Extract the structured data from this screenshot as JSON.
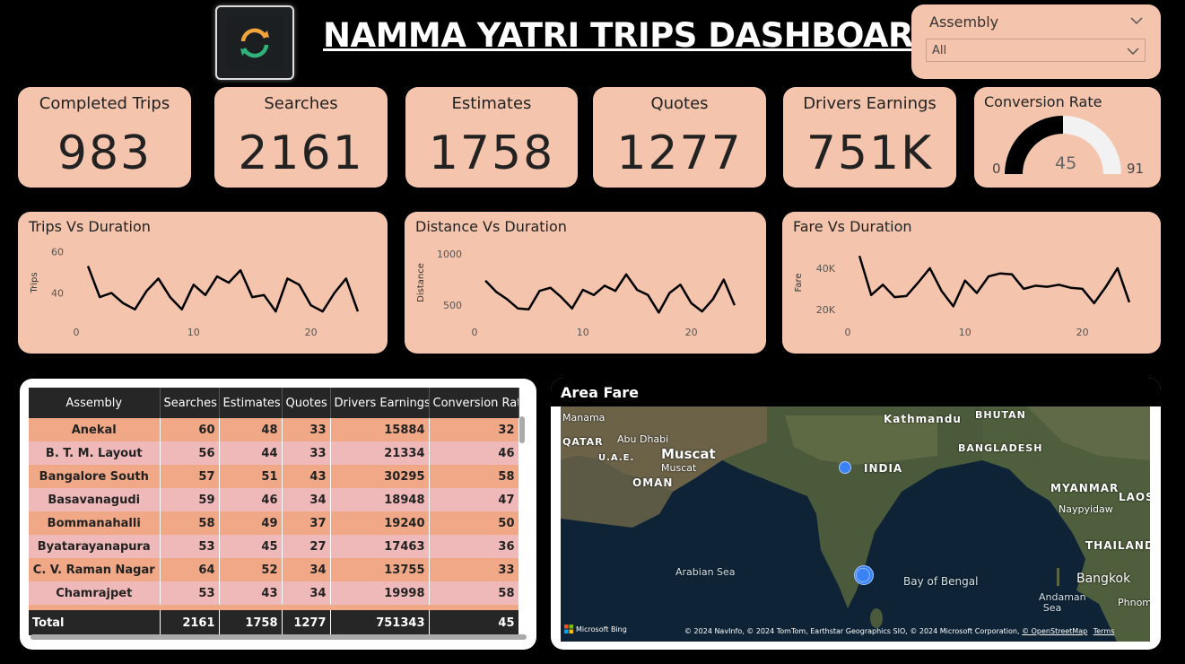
{
  "header": {
    "title": "NAMMA YATRI TRIPS DASHBOARD"
  },
  "slicer": {
    "label": "Assembly",
    "selected": "All"
  },
  "kpis": {
    "completed": {
      "label": "Completed Trips",
      "value": "983"
    },
    "searches": {
      "label": "Searches",
      "value": "2161"
    },
    "estimates": {
      "label": "Estimates",
      "value": "1758"
    },
    "quotes": {
      "label": "Quotes",
      "value": "1277"
    },
    "earnings": {
      "label": "Drivers Earnings",
      "value": "751K"
    }
  },
  "gauge": {
    "title": "Conversion Rate",
    "min": "0",
    "max": "91",
    "value_label": "45",
    "value": 45.5
  },
  "colors": {
    "card": "#f4c4ad",
    "line": "#000000",
    "gauge_fill": "#000000",
    "gauge_track": "#f2f2f2",
    "row_a": "#f0a887",
    "row_b": "#f0b9b9",
    "map_dot": "#3b82f6"
  },
  "chart_data": [
    {
      "type": "line",
      "title": "Trips Vs Duration",
      "ylabel": "Trips",
      "xlabel": "",
      "x": [
        1,
        2,
        3,
        4,
        5,
        6,
        7,
        8,
        9,
        10,
        11,
        12,
        13,
        14,
        15,
        16,
        17,
        18,
        19,
        20,
        21,
        22,
        23,
        24
      ],
      "y": [
        53,
        38,
        40,
        35,
        32,
        41,
        47,
        38,
        32,
        44,
        39,
        48,
        45,
        51,
        38,
        39,
        31,
        47,
        44,
        34,
        31,
        40,
        47,
        31
      ],
      "ylim": [
        28,
        62
      ],
      "xlim": [
        0,
        25
      ],
      "yticks": [
        "40",
        "60"
      ],
      "xticks": [
        "0",
        "10",
        "20"
      ]
    },
    {
      "type": "line",
      "title": "Distance Vs Duration",
      "ylabel": "Distance",
      "xlabel": "",
      "x": [
        1,
        2,
        3,
        4,
        5,
        6,
        7,
        8,
        9,
        10,
        11,
        12,
        13,
        14,
        15,
        16,
        17,
        18,
        19,
        20,
        21,
        22,
        23,
        24
      ],
      "y": [
        740,
        630,
        560,
        470,
        460,
        640,
        670,
        580,
        470,
        650,
        600,
        690,
        640,
        800,
        650,
        600,
        430,
        620,
        700,
        520,
        440,
        560,
        750,
        500
      ],
      "ylim": [
        380,
        1060
      ],
      "xlim": [
        0,
        25
      ],
      "yticks": [
        "500",
        "1000"
      ],
      "xticks": [
        "0",
        "10",
        "20"
      ]
    },
    {
      "type": "line",
      "title": "Fare Vs Duration",
      "ylabel": "Fare",
      "xlabel": "",
      "x": [
        1,
        2,
        3,
        4,
        5,
        6,
        7,
        8,
        9,
        10,
        11,
        12,
        13,
        14,
        15,
        16,
        17,
        18,
        19,
        20,
        21,
        22,
        23,
        24
      ],
      "y": [
        46000,
        27000,
        32000,
        26000,
        26500,
        33000,
        40000,
        29000,
        21500,
        34000,
        28000,
        36000,
        37500,
        37000,
        30000,
        31500,
        31000,
        32000,
        30500,
        30000,
        23000,
        31000,
        40000,
        23500
      ],
      "ylim": [
        16000,
        50000
      ],
      "xlim": [
        0,
        25
      ],
      "yticks": [
        "20K",
        "40K"
      ],
      "xticks": [
        "0",
        "10",
        "20"
      ]
    }
  ],
  "table": {
    "columns": [
      "Assembly",
      "Searches",
      "Estimates",
      "Quotes",
      "Drivers Earnings",
      "Conversion Rate"
    ],
    "rows": [
      [
        "Anekal",
        "60",
        "48",
        "33",
        "15884",
        "32"
      ],
      [
        "B. T. M. Layout",
        "56",
        "44",
        "33",
        "21334",
        "46"
      ],
      [
        "Bangalore South",
        "57",
        "51",
        "43",
        "30295",
        "58"
      ],
      [
        "Basavanagudi",
        "59",
        "46",
        "34",
        "18948",
        "47"
      ],
      [
        "Bommanahalli",
        "58",
        "49",
        "37",
        "19240",
        "50"
      ],
      [
        "Byatarayanapura",
        "53",
        "45",
        "27",
        "17463",
        "36"
      ],
      [
        "C. V. Raman Nagar",
        "64",
        "52",
        "34",
        "13755",
        "33"
      ],
      [
        "Chamrajpet",
        "53",
        "43",
        "34",
        "19998",
        "58"
      ]
    ],
    "total": [
      "Total",
      "2161",
      "1758",
      "1277",
      "751343",
      "45"
    ]
  },
  "map": {
    "title": "Area Fare",
    "labels": {
      "manama": "Manama",
      "kathmandu": "Kathmandu",
      "bhutan": "BHUTAN",
      "qatar": "QATAR",
      "abudhabi": "Abu Dhabi",
      "muscat_big": "Muscat",
      "muscat": "Muscat",
      "uae": "U.A.E.",
      "bangladesh": "BANGLADESH",
      "india": "INDIA",
      "oman": "OMAN",
      "myanmar": "MYANMAR",
      "naypyidaw": "Naypyidaw",
      "laos": "LAOS",
      "thailand": "THAILAND",
      "arabian": "Arabian Sea",
      "bengal": "Bay of Bengal",
      "bangkok": "Bangkok",
      "andaman": "Andaman Sea",
      "phnom": "Phnom"
    },
    "bing": "Microsoft Bing",
    "attribution": "© 2024 NavInfo, © 2024 TomTom, Earthstar Geographics SIO, © 2024 Microsoft Corporation,",
    "osm": "© OpenStreetMap",
    "terms": "Terms"
  }
}
